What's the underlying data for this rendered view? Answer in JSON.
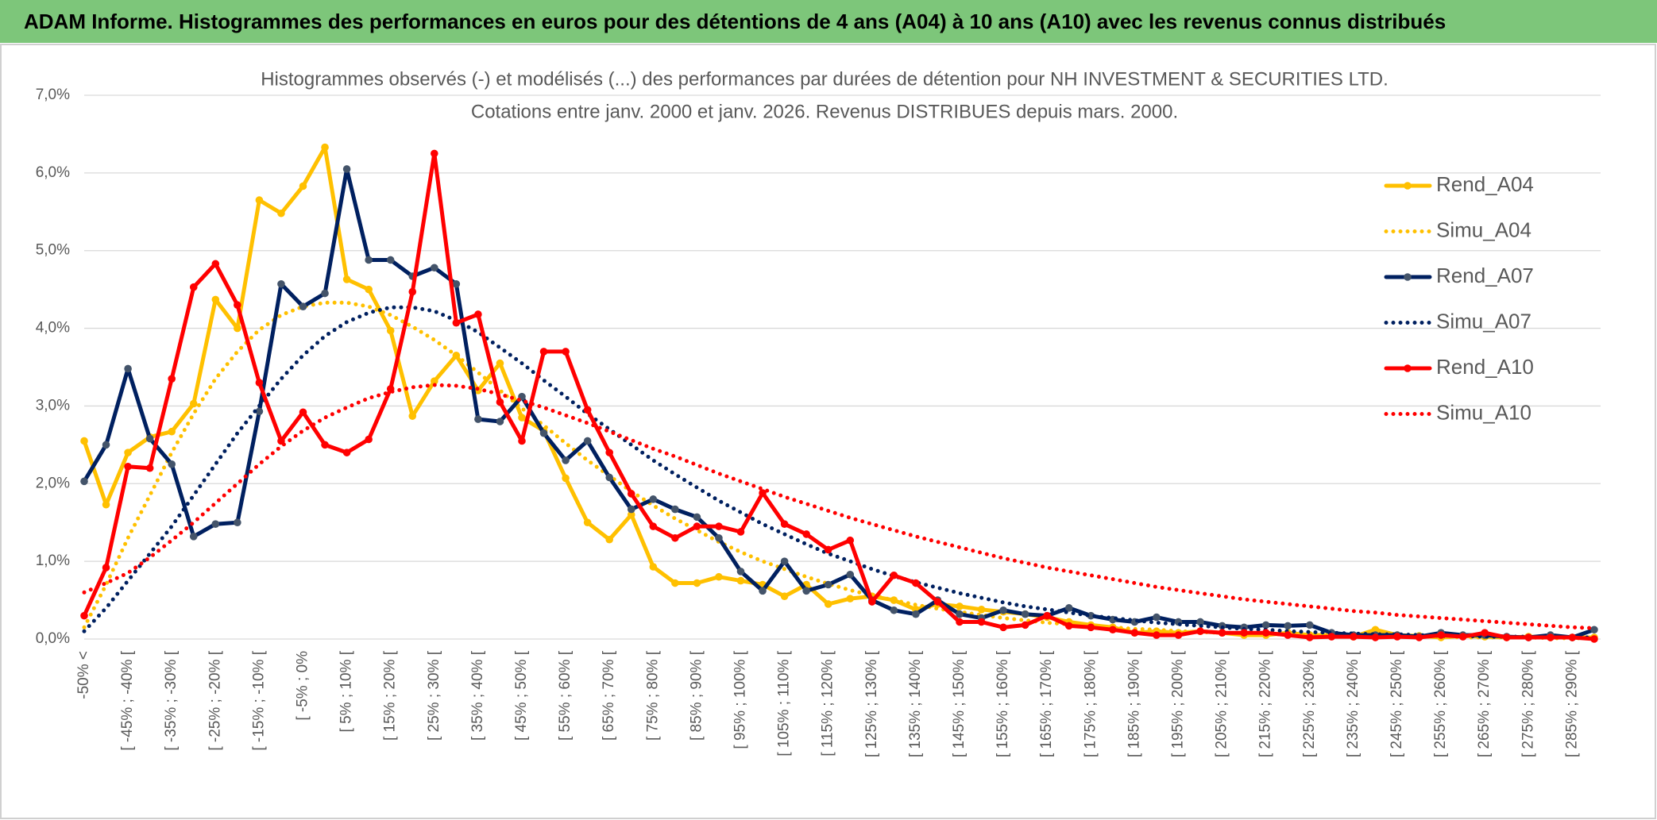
{
  "header": {
    "title": "ADAM Informe. Histogrammes des performances en euros pour des détentions de 4 ans (A04) à 10 ans (A10) avec les revenus connus distribués"
  },
  "chart_data": {
    "type": "line",
    "title": "Histogrammes observés (-) et modélisés (...) des performances par durées de détention pour NH INVESTMENT & SECURITIES LTD.",
    "subtitle": "Cotations entre janv. 2000 et janv. 2026. Revenus DISTRIBUES depuis mars. 2000.",
    "categories": [
      "-50% <",
      null,
      "[ -45% ; -40% [",
      null,
      "[ -35% ; -30% [",
      null,
      "[ -25% ; -20% [",
      null,
      "[ -15% ; -10% [",
      null,
      "[ -5% ; 0%",
      null,
      "[ 5% ; 10% [",
      null,
      "[ 15% ; 20% [",
      null,
      "[ 25% ; 30% [",
      null,
      "[ 35% ; 40% [",
      null,
      "[ 45% ; 50% [",
      null,
      "[ 55% ; 60% [",
      null,
      "[ 65% ; 70% [",
      null,
      "[ 75% ; 80% [",
      null,
      "[ 85% ; 90% [",
      null,
      "[ 95% ; 100% [",
      null,
      "[ 105% ; 110% [",
      null,
      "[ 115% ; 120% [",
      null,
      "[ 125% ; 130% [",
      null,
      "[ 135% ; 140% [",
      null,
      "[ 145% ; 150% [",
      null,
      "[ 155% ; 160% [",
      null,
      "[ 165% ; 170% [",
      null,
      "[ 175% ; 180% [",
      null,
      "[ 185% ; 190% [",
      null,
      "[ 195% ; 200% [",
      null,
      "[ 205% ; 210% [",
      null,
      "[ 215% ; 220% [",
      null,
      "[ 225% ; 230% [",
      null,
      "[ 235% ; 240% [",
      null,
      "[ 245% ; 250% [",
      null,
      "[ 255% ; 260% [",
      null,
      "[ 265% ; 270% [",
      null,
      "[ 275% ; 280% [",
      null,
      "[ 285% ; 290% [",
      null
    ],
    "series": [
      {
        "name": "Rend_A04",
        "color": "#FFC000",
        "marker_color": "#FFC000",
        "style": "solid",
        "markers": true,
        "values": [
          2.55,
          1.73,
          2.4,
          2.6,
          2.67,
          3.03,
          4.37,
          4.0,
          5.65,
          5.48,
          5.83,
          6.33,
          4.63,
          4.5,
          3.97,
          2.87,
          3.32,
          3.65,
          3.2,
          3.55,
          2.85,
          2.68,
          2.07,
          1.5,
          1.28,
          1.6,
          0.93,
          0.72,
          0.72,
          0.8,
          0.75,
          0.7,
          0.55,
          0.7,
          0.45,
          0.52,
          0.55,
          0.5,
          0.38,
          0.45,
          0.42,
          0.38,
          0.35,
          0.32,
          0.28,
          0.22,
          0.18,
          0.15,
          0.08,
          0.1,
          0.08,
          0.1,
          0.08,
          0.05,
          0.05,
          0.08,
          0.05,
          0.05,
          0.03,
          0.12,
          0.05,
          0.04,
          0.02,
          0.04,
          0.03,
          0.02,
          0.03,
          0.02,
          0.02,
          0.02
        ]
      },
      {
        "name": "Simu_A04",
        "color": "#FFC000",
        "style": "dotted",
        "markers": false,
        "values": [
          0.15,
          0.7,
          1.3,
          1.85,
          2.4,
          2.9,
          3.35,
          3.7,
          3.98,
          4.17,
          4.28,
          4.33,
          4.33,
          4.28,
          4.17,
          4.02,
          3.85,
          3.65,
          3.43,
          3.2,
          2.97,
          2.75,
          2.52,
          2.3,
          2.1,
          1.9,
          1.72,
          1.55,
          1.4,
          1.25,
          1.12,
          1.0,
          0.9,
          0.8,
          0.71,
          0.63,
          0.56,
          0.5,
          0.44,
          0.39,
          0.35,
          0.31,
          0.27,
          0.24,
          0.21,
          0.19,
          0.17,
          0.15,
          0.13,
          0.12,
          0.1,
          0.09,
          0.08,
          0.07,
          0.06,
          0.06,
          0.05,
          0.05,
          0.04,
          0.04,
          0.03,
          0.03,
          0.03,
          0.02,
          0.02,
          0.02,
          0.02,
          0.01,
          0.01,
          0.01
        ]
      },
      {
        "name": "Rend_A07",
        "color": "#002060",
        "marker_color": "#44546A",
        "style": "solid",
        "markers": true,
        "values": [
          2.03,
          2.5,
          3.48,
          2.58,
          2.25,
          1.32,
          1.48,
          1.5,
          2.93,
          4.57,
          4.28,
          4.45,
          6.05,
          4.88,
          4.88,
          4.67,
          4.78,
          4.57,
          2.83,
          2.8,
          3.12,
          2.65,
          2.3,
          2.55,
          2.08,
          1.67,
          1.8,
          1.67,
          1.57,
          1.3,
          0.87,
          0.62,
          1.0,
          0.62,
          0.7,
          0.83,
          0.5,
          0.37,
          0.32,
          0.5,
          0.32,
          0.27,
          0.37,
          0.32,
          0.3,
          0.4,
          0.3,
          0.25,
          0.22,
          0.28,
          0.22,
          0.22,
          0.17,
          0.15,
          0.18,
          0.17,
          0.18,
          0.08,
          0.05,
          0.05,
          0.05,
          0.03,
          0.08,
          0.05,
          0.05,
          0.03,
          0.02,
          0.05,
          0.02,
          0.12
        ]
      },
      {
        "name": "Simu_A07",
        "color": "#002060",
        "style": "dotted",
        "markers": false,
        "values": [
          0.1,
          0.4,
          0.75,
          1.1,
          1.45,
          1.85,
          2.25,
          2.65,
          3.0,
          3.35,
          3.65,
          3.9,
          4.08,
          4.2,
          4.27,
          4.27,
          4.22,
          4.1,
          3.95,
          3.75,
          3.55,
          3.33,
          3.12,
          2.9,
          2.7,
          2.5,
          2.3,
          2.12,
          1.95,
          1.78,
          1.63,
          1.48,
          1.35,
          1.22,
          1.1,
          1.0,
          0.9,
          0.81,
          0.73,
          0.66,
          0.59,
          0.53,
          0.47,
          0.42,
          0.38,
          0.34,
          0.3,
          0.27,
          0.24,
          0.21,
          0.19,
          0.17,
          0.15,
          0.13,
          0.12,
          0.1,
          0.09,
          0.08,
          0.07,
          0.06,
          0.06,
          0.05,
          0.04,
          0.04,
          0.03,
          0.03,
          0.03,
          0.02,
          0.02,
          0.02
        ]
      },
      {
        "name": "Rend_A10",
        "color": "#FF0000",
        "marker_color": "#FF0000",
        "style": "solid",
        "markers": true,
        "values": [
          0.3,
          0.92,
          2.22,
          2.2,
          3.35,
          4.53,
          4.83,
          4.3,
          3.3,
          2.55,
          2.92,
          2.5,
          2.4,
          2.57,
          3.22,
          4.47,
          6.25,
          4.07,
          4.18,
          3.05,
          2.55,
          3.7,
          3.7,
          2.95,
          2.4,
          1.87,
          1.45,
          1.3,
          1.45,
          1.45,
          1.38,
          1.88,
          1.48,
          1.35,
          1.15,
          1.27,
          0.48,
          0.82,
          0.72,
          0.48,
          0.22,
          0.22,
          0.15,
          0.18,
          0.3,
          0.17,
          0.15,
          0.12,
          0.08,
          0.05,
          0.05,
          0.1,
          0.08,
          0.08,
          0.08,
          0.05,
          0.02,
          0.03,
          0.03,
          0.02,
          0.03,
          0.02,
          0.05,
          0.03,
          0.08,
          0.02,
          0.02,
          0.02,
          0.02,
          0.0
        ]
      },
      {
        "name": "Simu_A10",
        "color": "#FF0000",
        "style": "dotted",
        "markers": false,
        "values": [
          0.6,
          0.72,
          0.85,
          1.05,
          1.27,
          1.5,
          1.75,
          2.0,
          2.25,
          2.48,
          2.68,
          2.85,
          2.98,
          3.1,
          3.18,
          3.24,
          3.27,
          3.26,
          3.22,
          3.15,
          3.07,
          2.98,
          2.88,
          2.78,
          2.67,
          2.56,
          2.45,
          2.35,
          2.24,
          2.13,
          2.03,
          1.93,
          1.83,
          1.74,
          1.65,
          1.56,
          1.48,
          1.4,
          1.32,
          1.25,
          1.18,
          1.11,
          1.04,
          0.98,
          0.92,
          0.87,
          0.82,
          0.77,
          0.72,
          0.67,
          0.63,
          0.59,
          0.55,
          0.51,
          0.48,
          0.45,
          0.42,
          0.39,
          0.36,
          0.34,
          0.31,
          0.29,
          0.27,
          0.25,
          0.23,
          0.21,
          0.19,
          0.17,
          0.15,
          0.14
        ]
      }
    ],
    "ylim": [
      0,
      7
    ],
    "yticks": [
      {
        "value": 0,
        "label": "0,0%"
      },
      {
        "value": 1,
        "label": "1,0%"
      },
      {
        "value": 2,
        "label": "2,0%"
      },
      {
        "value": 3,
        "label": "3,0%"
      },
      {
        "value": 4,
        "label": "4,0%"
      },
      {
        "value": 5,
        "label": "5,0%"
      },
      {
        "value": 6,
        "label": "6,0%"
      },
      {
        "value": 7,
        "label": "7,0%"
      }
    ],
    "grid": true,
    "legend": "right"
  }
}
